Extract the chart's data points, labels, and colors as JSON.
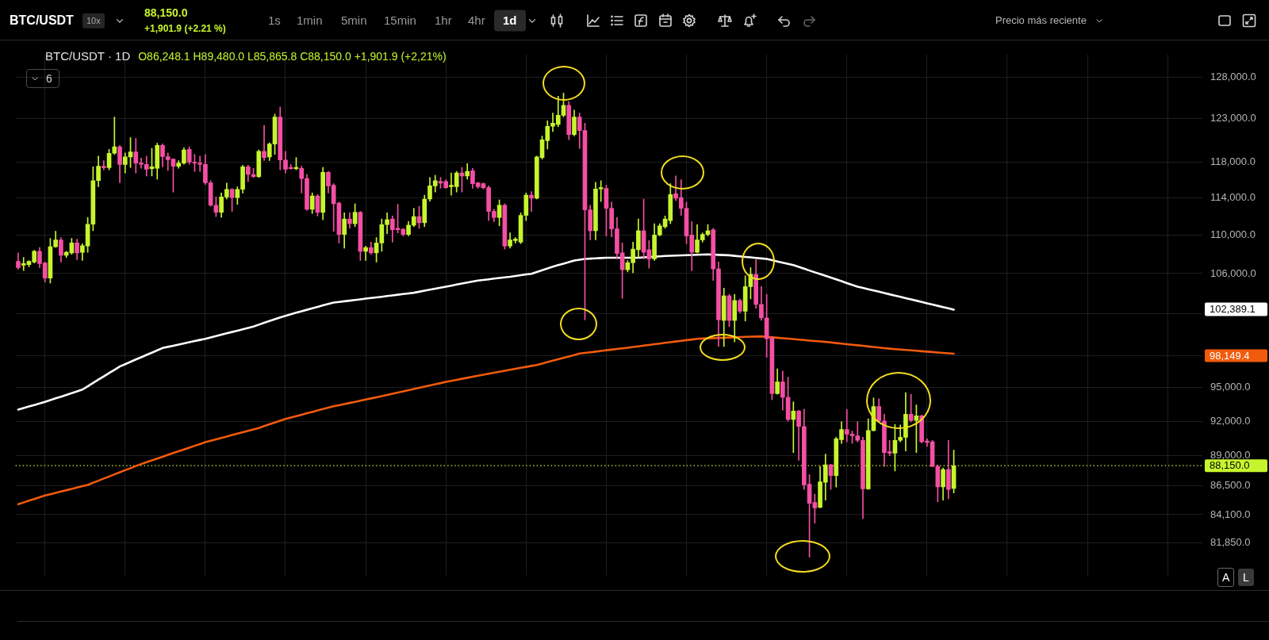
{
  "chart_data": {
    "type": "candlestick",
    "title": "BTC/USDT · 1D",
    "subtitle": "O86,248.1 H89,480.0 L85,865.8 C88,150.0 +1,901.9 (+2,21%)",
    "categories": [
      null,
      null,
      null,
      null,
      null,
      null,
      null,
      null,
      null,
      null,
      null,
      null,
      null,
      null,
      null,
      null,
      null,
      null,
      null,
      null,
      null,
      null,
      null,
      null,
      null,
      null,
      null,
      null,
      null,
      null,
      null,
      null,
      null,
      null,
      null,
      null,
      null,
      null,
      null,
      null,
      null,
      null,
      null,
      null,
      null,
      null,
      null,
      null,
      null,
      null,
      null,
      null,
      null,
      null,
      null,
      null,
      null,
      null,
      null,
      null,
      null,
      null,
      null,
      null,
      null,
      null,
      null,
      null,
      null,
      null,
      null,
      null,
      null,
      null,
      null,
      null,
      null,
      null,
      null,
      null,
      null,
      null,
      null,
      null,
      null,
      null,
      null,
      null,
      null,
      null,
      null,
      null,
      null,
      null,
      null,
      null,
      null,
      null,
      null,
      null,
      null,
      null,
      null,
      null,
      null,
      null,
      null,
      null,
      null,
      null,
      null,
      null,
      null,
      null,
      null,
      null,
      null,
      null,
      null,
      null,
      null,
      null,
      null,
      null,
      null,
      null,
      null,
      null,
      null,
      null,
      null,
      null,
      null,
      null,
      null,
      null,
      null,
      null,
      null,
      null,
      null,
      null,
      null,
      null,
      null,
      null,
      null,
      null,
      null,
      null,
      null,
      null,
      null,
      null,
      null,
      null,
      null,
      null,
      null,
      null,
      null,
      null,
      null,
      null,
      null,
      null,
      null,
      null,
      null,
      null,
      null,
      null,
      null,
      null,
      null,
      null,
      null,
      null,
      null,
      null,
      null,
      null,
      null,
      null,
      null,
      null,
      null,
      null,
      null,
      null,
      null,
      null,
      null,
      null,
      null,
      null,
      null,
      null,
      null,
      null,
      null,
      null,
      null,
      null,
      null,
      null,
      null,
      null,
      null,
      null,
      null,
      null,
      null,
      null,
      null,
      null,
      null,
      null,
      null,
      null,
      null,
      null
    ],
    "ohlc": [
      [
        107240,
        108130,
        106450,
        106610
      ],
      [
        106860,
        107650,
        106300,
        107020
      ],
      [
        106920,
        107340,
        106700,
        107240
      ],
      [
        107180,
        108390,
        107080,
        108290
      ],
      [
        108290,
        108680,
        106610,
        107020
      ],
      [
        107080,
        107180,
        105140,
        105550
      ],
      [
        105550,
        109640,
        105050,
        108770
      ],
      [
        108770,
        110390,
        108710,
        109480
      ],
      [
        109480,
        109730,
        107180,
        107880
      ],
      [
        107880,
        108290,
        107650,
        108190
      ],
      [
        108130,
        109640,
        107970,
        109160
      ],
      [
        109160,
        109570,
        107430,
        108130
      ],
      [
        108190,
        109090,
        107340,
        108870
      ],
      [
        108840,
        111860,
        108190,
        111140
      ],
      [
        111140,
        117440,
        110450,
        115890
      ],
      [
        115890,
        118660,
        115210,
        117510
      ],
      [
        117510,
        118140,
        117100,
        117340
      ],
      [
        117340,
        119430,
        117100,
        118980
      ],
      [
        118980,
        123190,
        118840,
        119720
      ],
      [
        119720,
        119890,
        115650,
        117690
      ],
      [
        117690,
        119010,
        116750,
        118560
      ],
      [
        118560,
        120780,
        117370,
        119120
      ],
      [
        119120,
        120670,
        116750,
        117860
      ],
      [
        117860,
        118420,
        117270,
        117720
      ],
      [
        117720,
        118660,
        116410,
        117170
      ],
      [
        117240,
        119540,
        116410,
        117440
      ],
      [
        117270,
        120140,
        116060,
        119890
      ],
      [
        119890,
        120070,
        117440,
        118590
      ],
      [
        118590,
        119010,
        117030,
        118240
      ],
      [
        118310,
        118350,
        114630,
        117510
      ],
      [
        117510,
        118140,
        117270,
        117860
      ],
      [
        117860,
        119610,
        117720,
        119360
      ],
      [
        119430,
        119720,
        117720,
        117960
      ],
      [
        117960,
        118840,
        116930,
        117860
      ],
      [
        117860,
        118660,
        116930,
        117720
      ],
      [
        117720,
        118840,
        115450,
        115650
      ],
      [
        115650,
        115890,
        113080,
        113190
      ],
      [
        113190,
        114090,
        111960,
        112420
      ],
      [
        112420,
        114530,
        111860,
        114090
      ],
      [
        114090,
        115620,
        113860,
        114930
      ],
      [
        114930,
        115040,
        112520,
        114020
      ],
      [
        114020,
        115210,
        113290,
        114930
      ],
      [
        114930,
        117620,
        114530,
        117440
      ],
      [
        117440,
        117620,
        115790,
        116580
      ],
      [
        116580,
        117270,
        116240,
        116340
      ],
      [
        116340,
        119360,
        116240,
        119190
      ],
      [
        119190,
        122210,
        118140,
        118490
      ],
      [
        118560,
        120170,
        118140,
        120030
      ],
      [
        120030,
        123550,
        118840,
        123190
      ],
      [
        123190,
        124390,
        117100,
        118210
      ],
      [
        118210,
        119190,
        116750,
        117170
      ],
      [
        117370,
        117720,
        117170,
        117240
      ],
      [
        117240,
        118490,
        117100,
        117370
      ],
      [
        117270,
        117510,
        114530,
        116130
      ],
      [
        116130,
        116580,
        112620,
        112750
      ],
      [
        112750,
        114530,
        112290,
        114190
      ],
      [
        114190,
        114360,
        112030,
        112420
      ],
      [
        112420,
        117380,
        111630,
        116820
      ],
      [
        116820,
        116930,
        114530,
        115310
      ],
      [
        115380,
        115550,
        110390,
        113350
      ],
      [
        113420,
        113520,
        109160,
        110060
      ],
      [
        110060,
        112360,
        108610,
        111700
      ],
      [
        111700,
        112360,
        110710,
        111200
      ],
      [
        111200,
        113350,
        110880,
        112420
      ],
      [
        112420,
        112520,
        107340,
        108290
      ],
      [
        108290,
        108840,
        107340,
        108680
      ],
      [
        108680,
        109250,
        107970,
        108130
      ],
      [
        108130,
        109730,
        107180,
        109160
      ],
      [
        109160,
        111700,
        108290,
        111100
      ],
      [
        111100,
        112360,
        110130,
        111630
      ],
      [
        111700,
        112030,
        109250,
        110550
      ],
      [
        110710,
        113290,
        110220,
        110550
      ],
      [
        110610,
        110710,
        109900,
        110060
      ],
      [
        110060,
        111430,
        109900,
        111040
      ],
      [
        111040,
        112850,
        110880,
        111960
      ],
      [
        111960,
        113080,
        110710,
        111300
      ],
      [
        111300,
        114290,
        110880,
        113860
      ],
      [
        113860,
        116240,
        113620,
        115310
      ],
      [
        115310,
        116480,
        114630,
        115890
      ],
      [
        115790,
        116240,
        115040,
        115620
      ],
      [
        115790,
        116000,
        115040,
        115110
      ],
      [
        115210,
        116750,
        114290,
        115380
      ],
      [
        115210,
        116930,
        114630,
        116750
      ],
      [
        116750,
        117380,
        114630,
        116410
      ],
      [
        116410,
        117790,
        116060,
        116930
      ],
      [
        117000,
        117270,
        115040,
        115550
      ],
      [
        115650,
        115720,
        115040,
        115210
      ],
      [
        115550,
        115650,
        114970,
        115110
      ],
      [
        115110,
        115310,
        111530,
        112520
      ],
      [
        112520,
        112750,
        111430,
        111860
      ],
      [
        111860,
        113760,
        110970,
        113190
      ],
      [
        113190,
        113350,
        108520,
        108840
      ],
      [
        108840,
        110220,
        108610,
        109480
      ],
      [
        109410,
        109730,
        109160,
        109570
      ],
      [
        109250,
        112360,
        109090,
        112090
      ],
      [
        112090,
        114530,
        111530,
        114290
      ],
      [
        114290,
        114690,
        112520,
        113960
      ],
      [
        113960,
        118660,
        113860,
        118560
      ],
      [
        118490,
        120960,
        118310,
        120530
      ],
      [
        120420,
        122750,
        119470,
        122100
      ],
      [
        122100,
        123660,
        121490,
        122460
      ],
      [
        122320,
        125680,
        122030,
        123400
      ],
      [
        123400,
        126050,
        123190,
        124580
      ],
      [
        124580,
        125020,
        120530,
        121140
      ],
      [
        121140,
        124020,
        120960,
        123190
      ],
      [
        123190,
        123660,
        119540,
        121600
      ],
      [
        121600,
        122460,
        101400,
        112690
      ],
      [
        112690,
        113190,
        109480,
        110450
      ],
      [
        110450,
        115720,
        109480,
        114970
      ],
      [
        114970,
        115890,
        113590,
        115110
      ],
      [
        115040,
        115380,
        109900,
        112850
      ],
      [
        112850,
        113520,
        109800,
        110650
      ],
      [
        110650,
        111860,
        107500,
        108070
      ],
      [
        108130,
        109160,
        103510,
        106390
      ],
      [
        106390,
        107340,
        106170,
        107110
      ],
      [
        107110,
        109250,
        106080,
        108520
      ],
      [
        108450,
        111700,
        107650,
        110450
      ],
      [
        110450,
        113860,
        107500,
        108190
      ],
      [
        108450,
        109410,
        106550,
        107500
      ],
      [
        107500,
        111200,
        107340,
        110000
      ],
      [
        110000,
        111200,
        109900,
        110970
      ],
      [
        110880,
        112030,
        110710,
        111700
      ],
      [
        111530,
        115550,
        111200,
        114360
      ],
      [
        114430,
        116410,
        113690,
        113960
      ],
      [
        114020,
        116000,
        112090,
        112850
      ],
      [
        112850,
        113520,
        109090,
        109900
      ],
      [
        110000,
        111430,
        106300,
        108190
      ],
      [
        108190,
        111100,
        108130,
        109480
      ],
      [
        109480,
        110220,
        109250,
        110060
      ],
      [
        110060,
        111100,
        109900,
        110450
      ],
      [
        110550,
        110710,
        105300,
        106480
      ],
      [
        106480,
        107180,
        98830,
        101400
      ],
      [
        101340,
        104530,
        98830,
        103760
      ],
      [
        103760,
        103910,
        100750,
        101340
      ],
      [
        101340,
        103910,
        99270,
        103300
      ],
      [
        103300,
        103450,
        102090,
        102240
      ],
      [
        102240,
        105770,
        101280,
        104680
      ],
      [
        104680,
        106610,
        103450,
        105920
      ],
      [
        105920,
        107430,
        102540,
        102910
      ],
      [
        102910,
        104680,
        101340,
        101580
      ],
      [
        101580,
        103910,
        97820,
        99570
      ],
      [
        99620,
        99800,
        93910,
        94470
      ],
      [
        94470,
        96730,
        94410,
        95530
      ],
      [
        95530,
        96530,
        92970,
        94130
      ],
      [
        94130,
        95960,
        91990,
        92150
      ],
      [
        92150,
        93720,
        89270,
        92890
      ],
      [
        92890,
        92970,
        88610,
        91530
      ],
      [
        91530,
        93080,
        86160,
        86540
      ],
      [
        86600,
        87390,
        80750,
        85030
      ],
      [
        85100,
        85780,
        83420,
        84650
      ],
      [
        84700,
        88090,
        84650,
        86800
      ],
      [
        86750,
        89140,
        85280,
        88220
      ],
      [
        88220,
        88270,
        86160,
        87310
      ],
      [
        87310,
        90590,
        86360,
        90460
      ],
      [
        90380,
        91940,
        90060,
        91260
      ],
      [
        91260,
        93030,
        90190,
        90860
      ],
      [
        90860,
        91130,
        90060,
        90720
      ],
      [
        90720,
        91940,
        90190,
        90320
      ],
      [
        90320,
        90590,
        83780,
        86210
      ],
      [
        86210,
        92200,
        86160,
        91180
      ],
      [
        91180,
        94080,
        91130,
        93300
      ],
      [
        93300,
        93990,
        91940,
        92020
      ],
      [
        92020,
        92620,
        88090,
        89270
      ],
      [
        89340,
        90320,
        89000,
        89210
      ],
      [
        89210,
        91720,
        87700,
        90320
      ],
      [
        90320,
        91670,
        90190,
        90590
      ],
      [
        90590,
        94550,
        89400,
        92620
      ],
      [
        92620,
        94410,
        91940,
        92070
      ],
      [
        92070,
        93440,
        89270,
        92480
      ],
      [
        92480,
        92540,
        90110,
        90190
      ],
      [
        90270,
        90460,
        89800,
        90140
      ],
      [
        90190,
        90320,
        88050,
        88090
      ],
      [
        88090,
        88220,
        85150,
        86370
      ],
      [
        86370,
        87960,
        85280,
        87830
      ],
      [
        87830,
        90320,
        85400,
        86160
      ],
      [
        86248.1,
        89480,
        85865.8,
        88150
      ],
      null,
      null,
      null,
      null,
      null,
      null,
      null,
      null,
      null,
      null,
      null,
      null,
      null,
      null,
      null,
      null,
      null,
      null,
      null,
      null,
      null,
      null,
      null,
      null,
      null,
      null,
      null,
      null,
      null,
      null,
      null,
      null,
      null,
      null,
      null,
      null,
      null,
      null,
      null,
      null,
      null,
      null,
      null,
      null,
      null,
      null
    ],
    "colors": [
      "#f44fa4",
      "#c6f52e",
      "#c6f52e",
      "#c6f52e",
      "#f44fa4",
      "#f44fa4",
      "#c6f52e",
      "#c6f52e",
      "#f44fa4",
      "#c6f52e",
      "#c6f52e",
      "#f44fa4",
      "#c6f52e",
      "#c6f52e",
      "#c6f52e",
      "#c6f52e",
      "#f44fa4",
      "#c6f52e",
      "#c6f52e",
      "#f44fa4",
      "#c6f52e",
      "#c6f52e",
      "#f44fa4",
      "#f44fa4",
      "#f44fa4",
      "#c6f52e",
      "#c6f52e",
      "#f44fa4",
      "#f44fa4",
      "#f44fa4",
      "#c6f52e",
      "#c6f52e",
      "#f44fa4",
      "#f44fa4",
      "#f44fa4",
      "#f44fa4",
      "#f44fa4",
      "#f44fa4",
      "#c6f52e",
      "#c6f52e",
      "#f44fa4",
      "#c6f52e",
      "#c6f52e",
      "#f44fa4",
      "#f44fa4",
      "#c6f52e",
      "#f44fa4",
      "#c6f52e",
      "#c6f52e",
      "#f44fa4",
      "#f44fa4",
      "#f44fa4",
      "#c6f52e",
      "#f44fa4",
      "#f44fa4",
      "#c6f52e",
      "#f44fa4",
      "#c6f52e",
      "#f44fa4",
      "#f44fa4",
      "#f44fa4",
      "#c6f52e",
      "#f44fa4",
      "#c6f52e",
      "#f44fa4",
      "#c6f52e",
      "#f44fa4",
      "#c6f52e",
      "#c6f52e",
      "#c6f52e",
      "#f44fa4",
      "#f44fa4",
      "#f44fa4",
      "#c6f52e",
      "#c6f52e",
      "#f44fa4",
      "#c6f52e",
      "#c6f52e",
      "#c6f52e",
      "#f44fa4",
      "#f44fa4",
      "#c6f52e",
      "#c6f52e",
      "#f44fa4",
      "#c6f52e",
      "#f44fa4",
      "#f44fa4",
      "#f44fa4",
      "#f44fa4",
      "#f44fa4",
      "#c6f52e",
      "#f44fa4",
      "#c6f52e",
      "#c6f52e",
      "#c6f52e",
      "#c6f52e",
      "#f44fa4",
      "#c6f52e",
      "#c6f52e",
      "#c6f52e",
      "#c6f52e",
      "#c6f52e",
      "#c6f52e",
      "#f44fa4",
      "#c6f52e",
      "#f44fa4",
      "#f44fa4",
      "#f44fa4",
      "#c6f52e",
      "#c6f52e",
      "#f44fa4",
      "#f44fa4",
      "#f44fa4",
      "#f44fa4",
      "#c6f52e",
      "#c6f52e",
      "#c6f52e",
      "#f44fa4",
      "#f44fa4",
      "#c6f52e",
      "#c6f52e",
      "#c6f52e",
      "#c6f52e",
      "#f44fa4",
      "#f44fa4",
      "#f44fa4",
      "#f44fa4",
      "#c6f52e",
      "#c6f52e",
      "#c6f52e",
      "#f44fa4",
      "#f44fa4",
      "#c6f52e",
      "#f44fa4",
      "#c6f52e",
      "#f44fa4",
      "#c6f52e",
      "#c6f52e",
      "#f44fa4",
      "#f44fa4",
      "#f44fa4",
      "#f44fa4",
      "#c6f52e",
      "#f44fa4",
      "#f44fa4",
      "#c6f52e",
      "#f44fa4",
      "#f44fa4",
      "#f44fa4",
      "#f44fa4",
      "#c6f52e",
      "#c6f52e",
      "#f44fa4",
      "#c6f52e",
      "#c6f52e",
      "#f44fa4",
      "#f44fa4",
      "#f44fa4",
      "#f44fa4",
      "#c6f52e",
      "#c6f52e",
      "#f44fa4",
      "#f44fa4",
      "#f44fa4",
      "#c6f52e",
      "#c6f52e",
      "#c6f52e",
      "#f44fa4",
      "#c6f52e",
      "#f44fa4",
      "#f44fa4",
      "#f44fa4",
      "#f44fa4",
      "#c6f52e",
      "#f44fa4",
      "#c6f52e",
      null,
      null,
      null,
      null,
      null,
      null,
      null,
      null,
      null,
      null,
      null,
      null,
      null,
      null,
      null,
      null,
      null,
      null,
      null,
      null,
      null,
      null,
      null,
      null,
      null,
      null,
      null,
      null,
      null,
      null,
      null,
      null,
      null,
      null,
      null,
      null,
      null,
      null,
      null,
      null,
      null,
      null,
      null,
      null,
      null,
      null
    ],
    "series": [
      {
        "type": "line",
        "color": "#ffffff",
        "values": [
          93030,
          93160,
          93300,
          93440,
          93580,
          93720,
          93880,
          94040,
          94190,
          94350,
          94510,
          94670,
          94830,
          95130,
          95440,
          95740,
          96040,
          96350,
          96650,
          96960,
          97170,
          97390,
          97610,
          97820,
          98040,
          98250,
          98470,
          98690,
          98800,
          98910,
          99020,
          99130,
          99240,
          99350,
          99460,
          99570,
          99700,
          99830,
          99960,
          100090,
          100220,
          100350,
          100480,
          100610,
          100750,
          100930,
          101110,
          101290,
          101460,
          101640,
          101790,
          101940,
          102090,
          102240,
          102380,
          102520,
          102660,
          102810,
          102950,
          103090,
          103150,
          103220,
          103280,
          103350,
          103410,
          103480,
          103540,
          103610,
          103670,
          103740,
          103800,
          103870,
          103940,
          104000,
          104070,
          104170,
          104270,
          104370,
          104480,
          104580,
          104680,
          104780,
          104890,
          104990,
          105090,
          105200,
          105300,
          105360,
          105420,
          105490,
          105550,
          105610,
          105670,
          105750,
          105830,
          105910,
          105980,
          106160,
          106340,
          106520,
          106700,
          106860,
          107020,
          107180,
          107340,
          107420,
          107500,
          107530,
          107560,
          107590,
          107620,
          107620,
          107620,
          107620,
          107620,
          107620,
          107620,
          107660,
          107700,
          107740,
          107770,
          107810,
          107830,
          107850,
          107870,
          107890,
          107910,
          107930,
          107950,
          107970,
          107950,
          107920,
          107900,
          107880,
          107820,
          107770,
          107710,
          107660,
          107610,
          107550,
          107500,
          107370,
          107240,
          107120,
          106990,
          106860,
          106680,
          106500,
          106310,
          106130,
          105950,
          105770,
          105590,
          105410,
          105230,
          105040,
          104860,
          104680,
          104550,
          104420,
          104300,
          104170,
          104040,
          103910,
          103790,
          103660,
          103530,
          103400,
          103280,
          103150,
          103020,
          102890,
          102770,
          102640,
          102520,
          102389.1,
          null,
          null,
          null,
          null,
          null,
          null,
          null,
          null,
          null,
          null,
          null,
          null,
          null,
          null,
          null,
          null,
          null,
          null,
          null,
          null,
          null,
          null,
          null,
          null,
          null,
          null,
          null,
          null,
          null,
          null,
          null,
          null,
          null,
          null,
          null,
          null,
          null,
          null,
          null,
          null,
          null,
          null,
          null,
          null,
          null,
          null
        ]
      },
      {
        "type": "line",
        "color": "#f25a0c",
        "values": [
          84950,
          85090,
          85240,
          85380,
          85520,
          85660,
          85770,
          85880,
          85990,
          86100,
          86210,
          86320,
          86430,
          86540,
          86720,
          86890,
          87070,
          87240,
          87420,
          87590,
          87770,
          87940,
          88120,
          88290,
          88450,
          88600,
          88760,
          88910,
          89070,
          89230,
          89380,
          89540,
          89690,
          89850,
          90000,
          90160,
          90280,
          90410,
          90530,
          90650,
          90780,
          90900,
          91030,
          91150,
          91270,
          91400,
          91560,
          91720,
          91880,
          92040,
          92200,
          92320,
          92450,
          92570,
          92700,
          92820,
          92950,
          93070,
          93200,
          93320,
          93420,
          93520,
          93620,
          93720,
          93830,
          93930,
          94030,
          94130,
          94240,
          94350,
          94450,
          94560,
          94670,
          94780,
          94890,
          94990,
          95100,
          95210,
          95320,
          95420,
          95530,
          95630,
          95720,
          95820,
          95910,
          96010,
          96100,
          96190,
          96290,
          96380,
          96470,
          96560,
          96650,
          96740,
          96830,
          96920,
          97010,
          97100,
          97230,
          97370,
          97500,
          97630,
          97770,
          97900,
          98030,
          98170,
          98230,
          98290,
          98350,
          98410,
          98480,
          98540,
          98600,
          98660,
          98720,
          98790,
          98850,
          98920,
          98980,
          99050,
          99110,
          99180,
          99240,
          99310,
          99370,
          99440,
          99500,
          99570,
          99590,
          99610,
          99630,
          99650,
          99670,
          99690,
          99710,
          99730,
          99750,
          99770,
          99780,
          99800,
          99760,
          99710,
          99670,
          99620,
          99580,
          99540,
          99490,
          99450,
          99400,
          99360,
          99320,
          99270,
          99220,
          99160,
          99110,
          99060,
          99000,
          98950,
          98900,
          98840,
          98790,
          98740,
          98680,
          98630,
          98590,
          98550,
          98510,
          98470,
          98430,
          98390,
          98350,
          98310,
          98270,
          98230,
          98190,
          98149.4,
          null,
          null,
          null,
          null,
          null,
          null,
          null,
          null,
          null,
          null,
          null,
          null,
          null,
          null,
          null,
          null,
          null,
          null,
          null,
          null,
          null,
          null,
          null,
          null,
          null,
          null,
          null,
          null,
          null,
          null,
          null,
          null,
          null,
          null,
          null,
          null,
          null,
          null,
          null,
          null,
          null,
          null,
          null,
          null,
          null,
          null
        ]
      }
    ],
    "ylim": [
      79300,
      130800
    ],
    "yticks": [
      {
        "value": 128000,
        "label": "128,000.0"
      },
      {
        "value": 123000,
        "label": "123,000.0"
      },
      {
        "value": 118000,
        "label": "118,000.0"
      },
      {
        "value": 114000,
        "label": "114,000.0"
      },
      {
        "value": 110000,
        "label": "110,000.0"
      },
      {
        "value": 106000,
        "label": "106,000.0"
      },
      {
        "value": 102000,
        "label": null
      },
      {
        "value": 98000,
        "label": null
      },
      {
        "value": 95000,
        "label": "95,000.0"
      },
      {
        "value": 92000,
        "label": "92,000.0"
      },
      {
        "value": 89000,
        "label": "89,000.0"
      },
      {
        "value": 86500,
        "label": "86,500.0"
      },
      {
        "value": 84100,
        "label": "84,100.0"
      },
      {
        "value": 81850,
        "label": "81,850.0"
      }
    ],
    "log": "y",
    "grid": true,
    "tick_labels": "y",
    "ref_lines": [
      {
        "axis": "y",
        "value": 88150,
        "label": "88,150.0",
        "color": "#c6f52e",
        "line_style": "dotted"
      }
    ],
    "annotations": [
      "BTC/USDT",
      "10x",
      "88,150.0",
      "+1,901.9 (+2.21 %)",
      "1s",
      "1min",
      "5min",
      "15min",
      "1hr",
      "4hr",
      "1d",
      "Precio más reciente",
      "6",
      "A",
      "L",
      "102,389.1",
      "98,149.4"
    ]
  }
}
